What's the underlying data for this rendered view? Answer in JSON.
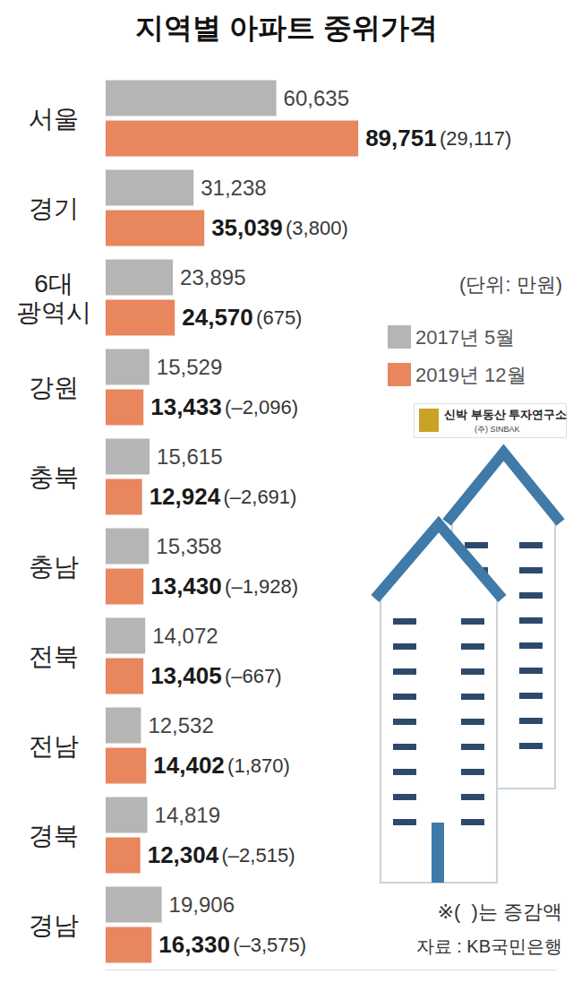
{
  "chart_data": {
    "type": "bar",
    "orientation": "horizontal",
    "title": "지역별 아파트 중위가격",
    "unit": "(단위: 만원)",
    "notes": [
      "※(  )는 증감액",
      "자료 : KB국민은행"
    ],
    "logo": [
      "신박 부동산 투자연구소",
      "(주) SINBAK"
    ],
    "categories": [
      "서울",
      "경기",
      "6대 광역시",
      "강원",
      "충북",
      "충남",
      "전북",
      "전남",
      "경북",
      "경남"
    ],
    "series": [
      {
        "name": "2017년 5월",
        "color": "#b5b5b5",
        "values": [
          60635,
          31238,
          23895,
          15529,
          15615,
          15358,
          14072,
          12532,
          14819,
          19906
        ],
        "value_labels": [
          "60,635",
          "31,238",
          "23,895",
          "15,529",
          "15,615",
          "15,358",
          "14,072",
          "12,532",
          "14,819",
          "19,906"
        ]
      },
      {
        "name": "2019년 12월",
        "color": "#e8865e",
        "values": [
          89751,
          35039,
          24570,
          13433,
          12924,
          13430,
          13405,
          14402,
          12304,
          16330
        ],
        "value_labels": [
          "89,751",
          "35,039",
          "24,570",
          "13,433",
          "12,924",
          "13,430",
          "13,405",
          "14,402",
          "12,304",
          "16,330"
        ],
        "changes": [
          29117,
          3800,
          675,
          -2096,
          -2691,
          -1928,
          -667,
          1870,
          -2515,
          -3575
        ],
        "change_labels": [
          "(29,117)",
          "(3,800)",
          "(675)",
          "(–2,096)",
          "(–2,691)",
          "(–1,928)",
          "(–667)",
          "(1,870)",
          "(–2,515)",
          "(–3,575)"
        ]
      }
    ],
    "xlim": [
      0,
      160000
    ],
    "data_labels": true,
    "tick_labels": false,
    "grid": false,
    "legend": "right"
  }
}
